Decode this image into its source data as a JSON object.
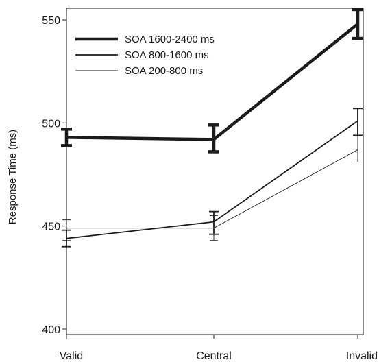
{
  "chart_data": {
    "type": "line",
    "categories": [
      "Valid",
      "Central",
      "Invalid"
    ],
    "ylabel": "Response Time (ms)",
    "ylim": [
      400,
      550
    ],
    "yticks": [
      400,
      450,
      500,
      550
    ],
    "grid": false,
    "legend_position": "top-left",
    "series": [
      {
        "name": "SOA 1600-2400 ms",
        "values": [
          493,
          492,
          548
        ],
        "error": [
          [
            489,
            497
          ],
          [
            486,
            499
          ],
          [
            541,
            555
          ]
        ],
        "style": "heavy",
        "color": "#1a1a1a"
      },
      {
        "name": "SOA 800-1600 ms",
        "values": [
          444,
          452,
          501
        ],
        "error": [
          [
            440,
            448
          ],
          [
            446,
            457
          ],
          [
            494,
            507
          ]
        ],
        "style": "medium",
        "color": "#1a1a1a"
      },
      {
        "name": "SOA 200-800 ms",
        "values": [
          449,
          449,
          487
        ],
        "error": [
          [
            443,
            453
          ],
          [
            443,
            455
          ],
          [
            481,
            494
          ]
        ],
        "style": "thin",
        "color": "#1a1a1a"
      }
    ]
  }
}
